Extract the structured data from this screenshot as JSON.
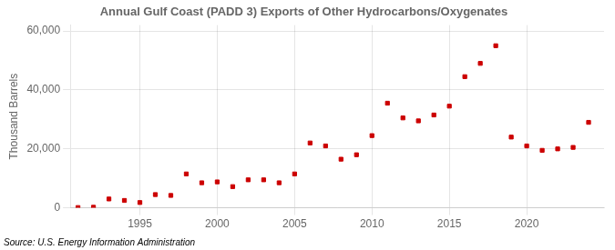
{
  "chart_data": {
    "type": "scatter",
    "title": "Annual Gulf Coast (PADD 3) Exports of Other Hydrocarbons/Oxygenates",
    "ylabel": "Thousand Barrels",
    "source": "Source: U.S. Energy Information Administration",
    "color": "#cc0000",
    "marker": "square",
    "x": [
      1991,
      1992,
      1993,
      1994,
      1995,
      1996,
      1997,
      1998,
      1999,
      2000,
      2001,
      2002,
      2003,
      2004,
      2005,
      2006,
      2007,
      2008,
      2009,
      2010,
      2011,
      2012,
      2013,
      2014,
      2015,
      2016,
      2017,
      2018,
      2019,
      2020,
      2021,
      2022,
      2023,
      2024
    ],
    "values": [
      100,
      200,
      3000,
      2500,
      1800,
      4500,
      4200,
      11500,
      8500,
      8800,
      7200,
      9500,
      9500,
      8500,
      11500,
      22000,
      21000,
      16500,
      18000,
      24500,
      35500,
      30500,
      29500,
      31500,
      34500,
      44500,
      49000,
      55000,
      24000,
      21000,
      19500,
      20000,
      20500,
      29000
    ],
    "xlim": [
      1990.5,
      2025
    ],
    "ylim": [
      0,
      62000
    ],
    "xticks": [
      1995,
      2000,
      2005,
      2010,
      2015,
      2020
    ],
    "yticks": [
      0,
      {
        "value": 20000,
        "label": "20,000"
      },
      {
        "value": 40000,
        "label": "40,000"
      },
      {
        "value": 60000,
        "label": "60,000"
      }
    ],
    "grid": true
  }
}
